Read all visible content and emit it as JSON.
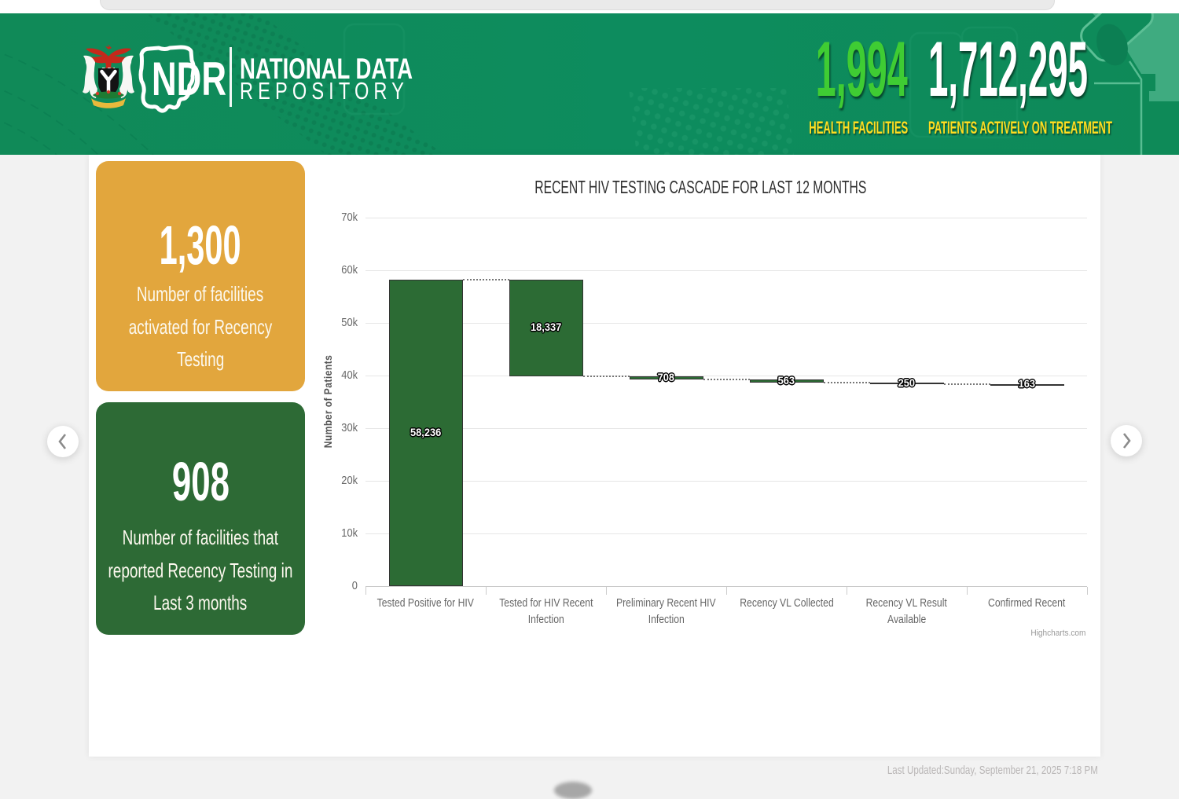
{
  "header": {
    "logo": {
      "acronym": "NDR",
      "brand_line1": "NATIONAL DATA",
      "brand_line2": "REPOSITORY"
    },
    "stats": [
      {
        "value": "1,994",
        "label": "HEALTH FACILITIES",
        "value_color": "#3fcc33"
      },
      {
        "value": "1,712,295",
        "label": "PATIENTS ACTIVELY ON TREATMENT",
        "value_color": "#ffffff"
      }
    ],
    "colors": {
      "background": "#0e8b5a",
      "label_yellow": "#ffdd20"
    }
  },
  "summary_cards": [
    {
      "value": "1,300",
      "lines": [
        "Number of facilities",
        "activated for Recency",
        "Testing"
      ],
      "color": "#e2a63d"
    },
    {
      "value": "908",
      "lines": [
        "Number of facilities that",
        "reported Recency Testing in",
        "Last 3 months"
      ],
      "color": "#2d6a35"
    }
  ],
  "carousel": {
    "prev_icon": "chevron-left",
    "next_icon": "chevron-right"
  },
  "chart_data": {
    "type": "waterfall",
    "title": "RECENT HIV TESTING CASCADE FOR LAST 12 MONTHS",
    "ylabel": "Number of Patients",
    "ylim": [
      0,
      70000
    ],
    "ytick_values": [
      0,
      10000,
      20000,
      30000,
      40000,
      50000,
      60000,
      70000
    ],
    "ytick_labels": [
      "0",
      "10k",
      "20k",
      "30k",
      "40k",
      "50k",
      "60k",
      "70k"
    ],
    "categories": [
      [
        "Tested Positive for HIV"
      ],
      [
        "Tested for HIV Recent",
        "Infection"
      ],
      [
        "Preliminary Recent HIV",
        "Infection"
      ],
      [
        "Recency VL Collected"
      ],
      [
        "Recency VL Result",
        "Available"
      ],
      [
        "Confirmed Recent"
      ]
    ],
    "values": [
      58236,
      18337,
      708,
      563,
      250,
      163
    ],
    "value_labels": [
      "58,236",
      "18,337",
      "708",
      "563",
      "250",
      "163"
    ],
    "first_is_total": true,
    "bar_color": "#2c6b34",
    "bar_border_color": "#333333",
    "grid": true,
    "credits": "Highcharts.com"
  },
  "footer": {
    "last_updated": "Last Updated:Sunday, September 21, 2025 7:18 PM"
  }
}
